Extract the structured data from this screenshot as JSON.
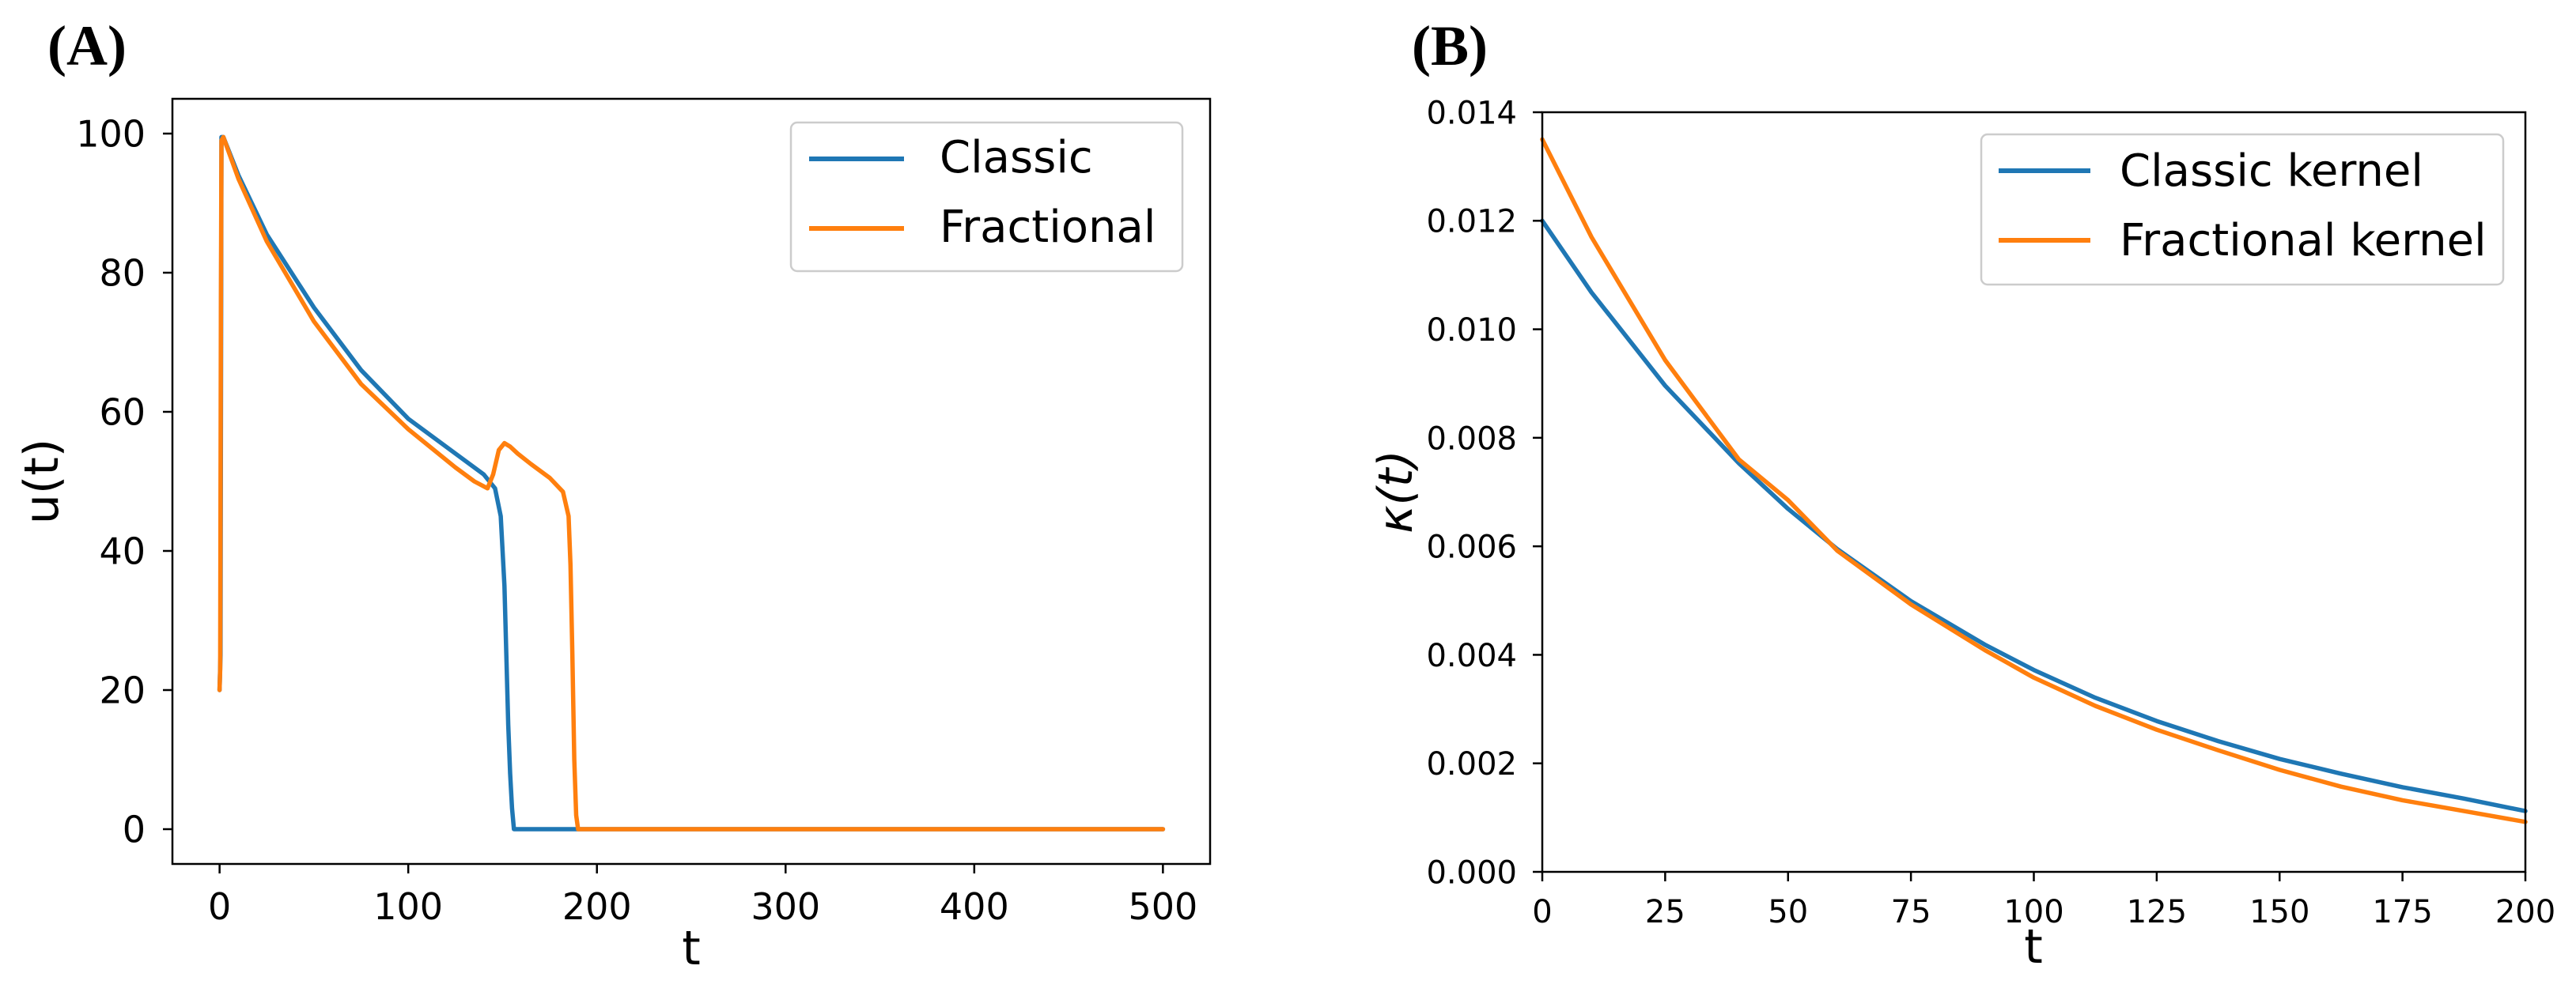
{
  "colors": {
    "classic": "#1f77b4",
    "fractional": "#ff7f0e",
    "axis": "#000000",
    "legend_border": "#cccccc"
  },
  "chart_data": [
    {
      "id": "A",
      "panel_label": "(A)",
      "type": "line",
      "xlabel": "t",
      "ylabel": "u(t)",
      "xlim": [
        -25,
        525
      ],
      "ylim": [
        -5,
        105
      ],
      "xticks": [
        0,
        100,
        200,
        300,
        400,
        500
      ],
      "xtick_labels": [
        "0",
        "100",
        "200",
        "300",
        "400",
        "500"
      ],
      "yticks": [
        0,
        20,
        40,
        60,
        80,
        100
      ],
      "ytick_labels": [
        "0",
        "20",
        "40",
        "60",
        "80",
        "100"
      ],
      "legend_position": "upper right",
      "series": [
        {
          "name": "Classic",
          "color_key": "classic",
          "x": [
            0,
            0.5,
            1,
            2,
            10,
            25,
            50,
            75,
            100,
            125,
            140,
            146,
            149,
            151,
            152,
            153,
            154,
            155,
            156,
            157,
            158,
            500
          ],
          "y": [
            20,
            25,
            99.5,
            99.5,
            94,
            85.5,
            75,
            66,
            59,
            54,
            51,
            49,
            45,
            35,
            25,
            15,
            8,
            3,
            0,
            0,
            0,
            0
          ]
        },
        {
          "name": "Fractional",
          "color_key": "fractional",
          "x": [
            0,
            0.3,
            0.7,
            1,
            2,
            10,
            25,
            50,
            75,
            100,
            125,
            135,
            142,
            145,
            148,
            151,
            154,
            158,
            165,
            175,
            182,
            185,
            186,
            187,
            188,
            189,
            190,
            500
          ],
          "y": [
            20,
            23,
            75,
            99,
            99.5,
            93.5,
            84.5,
            73,
            64,
            57.5,
            52,
            50,
            49,
            51,
            54.5,
            55.5,
            55,
            54,
            52.5,
            50.5,
            48.5,
            45,
            38,
            25,
            10,
            2,
            0,
            0
          ]
        }
      ]
    },
    {
      "id": "B",
      "panel_label": "(B)",
      "type": "line",
      "xlabel": "t",
      "ylabel": "κ(t)",
      "xlim": [
        0,
        200
      ],
      "ylim": [
        0,
        0.014
      ],
      "xticks": [
        0,
        25,
        50,
        75,
        100,
        125,
        150,
        175,
        200
      ],
      "xtick_labels": [
        "0",
        "25",
        "50",
        "75",
        "100",
        "125",
        "150",
        "175",
        "200"
      ],
      "yticks": [
        0,
        0.002,
        0.004,
        0.006,
        0.008,
        0.01,
        0.012,
        0.014
      ],
      "ytick_labels": [
        "0.000",
        "0.002",
        "0.004",
        "0.006",
        "0.008",
        "0.010",
        "0.012",
        "0.014"
      ],
      "legend_position": "upper right",
      "series": [
        {
          "name": "Classic kernel",
          "color_key": "classic",
          "x": [
            0,
            10,
            25,
            40,
            50,
            60,
            75,
            90,
            100,
            112.5,
            125,
            137.5,
            150,
            162.5,
            175,
            187.5,
            200
          ],
          "y": [
            0.012,
            0.01068,
            0.00896,
            0.00753,
            0.00669,
            0.00595,
            0.00499,
            0.00419,
            0.00372,
            0.00321,
            0.00278,
            0.00241,
            0.00208,
            0.00181,
            0.00156,
            0.00135,
            0.00112
          ]
        },
        {
          "name": "Fractional kernel",
          "color_key": "fractional",
          "x": [
            0,
            10,
            25,
            40,
            50,
            60,
            75,
            90,
            100,
            112.5,
            125,
            137.5,
            150,
            162.5,
            175,
            187.5,
            200
          ],
          "y": [
            0.0135,
            0.0117,
            0.00943,
            0.0076,
            0.00685,
            0.00592,
            0.00493,
            0.00409,
            0.00358,
            0.00306,
            0.00262,
            0.00224,
            0.00188,
            0.00157,
            0.00132,
            0.00112,
            0.00092
          ]
        }
      ]
    }
  ]
}
